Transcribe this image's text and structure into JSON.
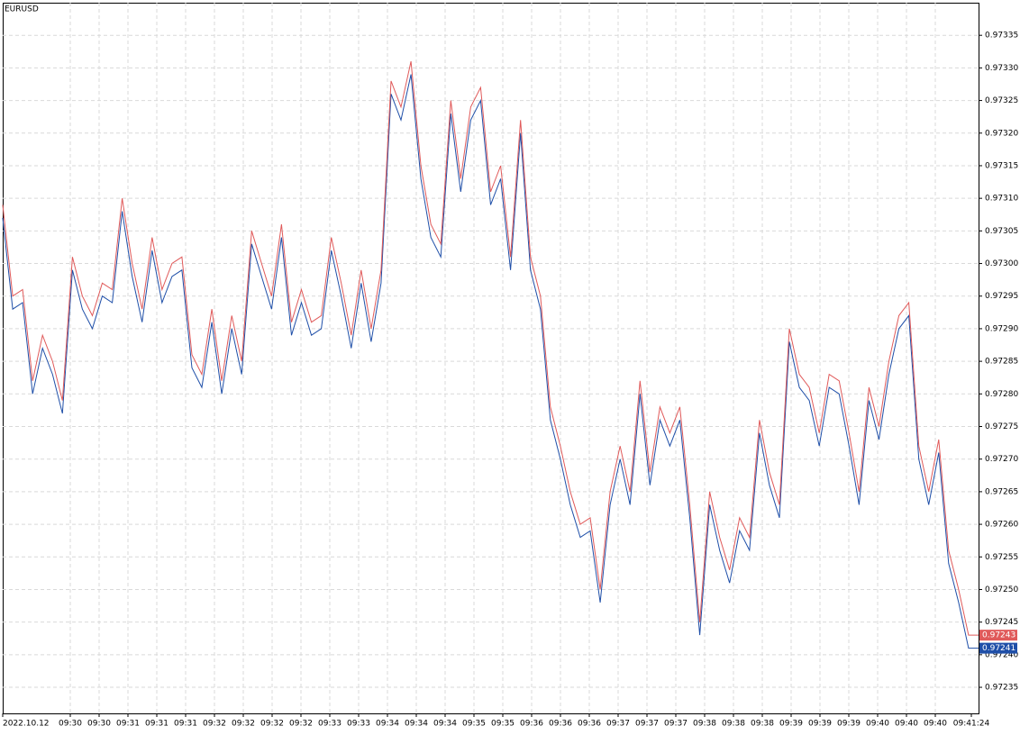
{
  "chart_data": {
    "type": "line",
    "title": "EURUSD",
    "x_labels": [
      "2022.10.12",
      "09:30",
      "09:30",
      "09:31",
      "09:31",
      "09:31",
      "09:32",
      "09:32",
      "09:32",
      "09:32",
      "09:33",
      "09:33",
      "09:34",
      "09:34",
      "09:34",
      "09:35",
      "09:35",
      "09:36",
      "09:36",
      "09:36",
      "09:37",
      "09:37",
      "09:37",
      "09:38",
      "09:38",
      "09:38",
      "09:39",
      "09:39",
      "09:39",
      "09:40",
      "09:40",
      "09:40",
      "09:41:24"
    ],
    "ylim": [
      0.97231,
      0.9734
    ],
    "yticks": [
      0.97235,
      {
        "value": 0.9724,
        "label": "0.97240"
      },
      0.97245,
      {
        "value": 0.9725,
        "label": "0.97250"
      },
      0.97255,
      {
        "value": 0.9726,
        "label": "0.97260"
      },
      0.97265,
      {
        "value": 0.9727,
        "label": "0.97270"
      },
      0.97275,
      {
        "value": 0.9728,
        "label": "0.97280"
      },
      0.97285,
      {
        "value": 0.9729,
        "label": "0.97290"
      },
      0.97295,
      {
        "value": 0.973,
        "label": "0.97300"
      },
      0.97305,
      {
        "value": 0.9731,
        "label": "0.97310"
      },
      0.97315,
      {
        "value": 0.9732,
        "label": "0.97320"
      },
      0.97325,
      {
        "value": 0.9733,
        "label": "0.97330"
      },
      0.97335
    ],
    "grid": true,
    "series": [
      {
        "color": "#1f4fa8",
        "last": 0.97241,
        "values": [
          0.97307,
          0.97293,
          0.97294,
          0.9728,
          0.97287,
          0.97283,
          0.97277,
          0.97299,
          0.97293,
          0.9729,
          0.97295,
          0.97294,
          0.97308,
          0.97298,
          0.97291,
          0.97302,
          0.97294,
          0.97298,
          0.97299,
          0.97284,
          0.97281,
          0.97291,
          0.9728,
          0.9729,
          0.97283,
          0.97303,
          0.97298,
          0.97293,
          0.97304,
          0.97289,
          0.97294,
          0.97289,
          0.9729,
          0.97302,
          0.97295,
          0.97287,
          0.97297,
          0.97288,
          0.97297,
          0.97326,
          0.97322,
          0.97329,
          0.97313,
          0.97304,
          0.97301,
          0.97323,
          0.97311,
          0.97322,
          0.97325,
          0.97309,
          0.97313,
          0.97299,
          0.9732,
          0.97299,
          0.97293,
          0.97276,
          0.9727,
          0.97263,
          0.97258,
          0.97259,
          0.97248,
          0.97263,
          0.9727,
          0.97263,
          0.9728,
          0.97266,
          0.97276,
          0.97272,
          0.97276,
          0.97261,
          0.97243,
          0.97263,
          0.97256,
          0.97251,
          0.97259,
          0.97256,
          0.97274,
          0.97266,
          0.97261,
          0.97288,
          0.97281,
          0.97279,
          0.97272,
          0.97281,
          0.9728,
          0.97272,
          0.97263,
          0.97279,
          0.97273,
          0.97283,
          0.9729,
          0.97292,
          0.9727,
          0.97263,
          0.97271,
          0.97254,
          0.97248,
          0.97241,
          0.97241
        ]
      },
      {
        "color": "#e05a5a",
        "last": 0.97243,
        "values": [
          0.97309,
          0.97295,
          0.97296,
          0.97282,
          0.97289,
          0.97285,
          0.97279,
          0.97301,
          0.97295,
          0.97292,
          0.97297,
          0.97296,
          0.9731,
          0.973,
          0.97293,
          0.97304,
          0.97296,
          0.973,
          0.97301,
          0.97286,
          0.97283,
          0.97293,
          0.97282,
          0.97292,
          0.97285,
          0.97305,
          0.973,
          0.97295,
          0.97306,
          0.97291,
          0.97296,
          0.97291,
          0.97292,
          0.97304,
          0.97297,
          0.97289,
          0.97299,
          0.9729,
          0.97299,
          0.97328,
          0.97324,
          0.97331,
          0.97315,
          0.97306,
          0.97303,
          0.97325,
          0.97313,
          0.97324,
          0.97327,
          0.97311,
          0.97315,
          0.97301,
          0.97322,
          0.97301,
          0.97295,
          0.97278,
          0.97272,
          0.97265,
          0.9726,
          0.97261,
          0.9725,
          0.97265,
          0.97272,
          0.97265,
          0.97282,
          0.97268,
          0.97278,
          0.97274,
          0.97278,
          0.97263,
          0.97245,
          0.97265,
          0.97258,
          0.97253,
          0.97261,
          0.97258,
          0.97276,
          0.97268,
          0.97263,
          0.9729,
          0.97283,
          0.97281,
          0.97274,
          0.97283,
          0.97282,
          0.97274,
          0.97265,
          0.97281,
          0.97275,
          0.97285,
          0.97292,
          0.97294,
          0.97272,
          0.97265,
          0.97273,
          0.97256,
          0.9725,
          0.97243,
          0.97243
        ]
      }
    ]
  }
}
